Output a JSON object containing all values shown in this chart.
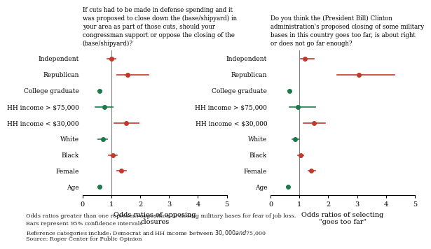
{
  "categories": [
    "Independent",
    "Republican",
    "College graduate",
    "HH income > $75,000",
    "HH income < $30,000",
    "White",
    "Black",
    "Female",
    "Age"
  ],
  "panel1_title": "If cuts had to be made in defense spending and it\nwas proposed to close down the (base/shipyard) in\nyour area as part of those cuts, should your\ncongressman support or oppose the closing of the\n(base/shipyard)?",
  "panel1_xlabel": "Odds ratios of opposing\nclosures",
  "panel2_title": "Do you think the (President Bill) Clinton\nadministration's proposed closing of some military\nbases in this country goes too far, is about right\nor does not go far enough?",
  "panel2_xlabel": "Odds ratios of selecting\n\"goes too far\"",
  "panel1_points": [
    1.0,
    1.55,
    0.6,
    0.75,
    1.5,
    0.7,
    1.05,
    1.35,
    0.6
  ],
  "panel1_lo": [
    0.85,
    1.2,
    0.55,
    0.45,
    1.1,
    0.55,
    0.9,
    1.2,
    0.55
  ],
  "panel1_hi": [
    1.15,
    2.3,
    0.65,
    1.05,
    1.95,
    0.85,
    1.2,
    1.5,
    0.65
  ],
  "panel1_colors": [
    "#c0392b",
    "#c0392b",
    "#1a7a4a",
    "#1a7a4a",
    "#c0392b",
    "#1a7a4a",
    "#c0392b",
    "#c0392b",
    "#1a7a4a"
  ],
  "panel2_points": [
    1.2,
    3.05,
    0.65,
    0.95,
    1.5,
    0.85,
    1.05,
    1.4,
    0.6
  ],
  "panel2_lo": [
    1.05,
    2.3,
    0.6,
    0.65,
    1.15,
    0.75,
    0.95,
    1.3,
    0.55
  ],
  "panel2_hi": [
    1.5,
    4.3,
    0.7,
    1.55,
    1.9,
    1.0,
    1.15,
    1.55,
    0.65
  ],
  "panel2_colors": [
    "#c0392b",
    "#c0392b",
    "#1a7a4a",
    "#1a7a4a",
    "#c0392b",
    "#1a7a4a",
    "#c0392b",
    "#c0392b",
    "#1a7a4a"
  ],
  "xlim": [
    0,
    5
  ],
  "xticks": [
    0,
    1,
    2,
    3,
    4,
    5
  ],
  "vline_x": 1.0,
  "footnote_lines": [
    "Odds ratios greater than one represent opposition to closing military bases for fear of job loss.",
    "Bars represent 95% confidence intervals",
    "Reference categories include: Democrat and HH income between $30,000 and $75,000",
    "Source: Roper Center for Public Opinion"
  ],
  "background_color": "#ffffff"
}
